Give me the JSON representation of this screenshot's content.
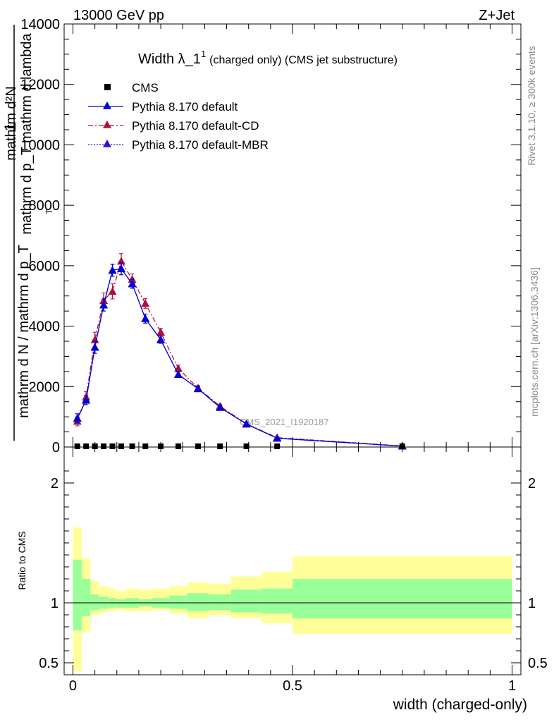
{
  "header": {
    "left": "13000 GeV pp",
    "right": "Z+Jet"
  },
  "side_labels": {
    "rivet": "Rivet 3.1.10, ≥ 300k events",
    "mcplots": "mcplots.cern.ch [arXiv:1306.3436]"
  },
  "watermark": "CMS_2021_I1920187",
  "chart_data": [
    {
      "type": "line",
      "title_main": "Width λ_1",
      "title_sup": "1",
      "title_rest": "(charged only) (CMS jet substructure)",
      "ylabel": {
        "numerator_one": "1",
        "denominator": "mathrm d N / mathrm d p_T",
        "fraction_numerator": "mathrm d²N",
        "fraction_denominator": "mathrm d p_T mathrm d lambda",
        "subscript": "T"
      },
      "xlim": [
        -0.02,
        1.02
      ],
      "ylim": [
        0,
        14000
      ],
      "y_ticks": [
        0,
        2000,
        4000,
        6000,
        8000,
        10000,
        12000,
        14000
      ],
      "legend_position": "top-left",
      "legend": [
        {
          "label": "CMS",
          "marker": "square",
          "color": "#000000"
        },
        {
          "label": "Pythia 8.170 default",
          "marker": "triangle",
          "line": "solid",
          "color": "#0000d0"
        },
        {
          "label": "Pythia 8.170 default-CD",
          "marker": "triangle",
          "line": "dashdot",
          "color": "#b0103a"
        },
        {
          "label": "Pythia 8.170 default-MBR",
          "marker": "triangle",
          "line": "dotted",
          "color": "#3a10c8"
        }
      ],
      "series": [
        {
          "name": "CMS",
          "x": [
            0.01,
            0.03,
            0.05,
            0.07,
            0.09,
            0.11,
            0.135,
            0.165,
            0.2,
            0.24,
            0.285,
            0.335,
            0.395,
            0.465,
            0.75
          ],
          "y": [
            25,
            25,
            25,
            25,
            25,
            25,
            25,
            25,
            25,
            25,
            25,
            25,
            25,
            25,
            25
          ]
        },
        {
          "name": "Pythia 8.170 default",
          "x": [
            0.01,
            0.03,
            0.05,
            0.07,
            0.09,
            0.11,
            0.135,
            0.165,
            0.2,
            0.24,
            0.285,
            0.335,
            0.395,
            0.465,
            0.75
          ],
          "y": [
            950,
            1550,
            3300,
            4700,
            5850,
            5900,
            5400,
            4250,
            3550,
            2400,
            1930,
            1310,
            760,
            290,
            30
          ],
          "err": [
            150,
            150,
            200,
            200,
            200,
            200,
            150,
            150,
            120,
            100,
            80,
            70,
            50,
            30,
            20
          ]
        },
        {
          "name": "Pythia 8.170 default-CD",
          "x": [
            0.01,
            0.03,
            0.05,
            0.07,
            0.09,
            0.11,
            0.135,
            0.165,
            0.2,
            0.24,
            0.285,
            0.335,
            0.395,
            0.465,
            0.75
          ],
          "y": [
            850,
            1650,
            3550,
            4850,
            5150,
            6150,
            5550,
            4750,
            3800,
            2600,
            1950,
            1350,
            770,
            310,
            35
          ],
          "err": [
            150,
            180,
            250,
            250,
            250,
            250,
            180,
            160,
            130,
            110,
            80,
            70,
            50,
            30,
            20
          ]
        },
        {
          "name": "Pythia 8.170 default-MBR",
          "x": [
            0.01,
            0.03,
            0.05,
            0.07,
            0.09,
            0.11,
            0.135,
            0.165,
            0.2,
            0.24,
            0.285,
            0.335,
            0.395,
            0.465,
            0.75
          ],
          "y": [
            950,
            1550,
            3300,
            4700,
            5850,
            5900,
            5400,
            4250,
            3550,
            2400,
            1930,
            1310,
            760,
            290,
            30
          ],
          "err": [
            150,
            150,
            200,
            200,
            200,
            200,
            150,
            150,
            120,
            100,
            80,
            70,
            50,
            30,
            20
          ]
        }
      ]
    },
    {
      "type": "area",
      "ylabel": "Ratio to CMS",
      "xlabel": "width (charged-only)",
      "xlim": [
        -0.02,
        1.02
      ],
      "ylim": [
        0.4,
        2.3
      ],
      "y_ticks": [
        0.5,
        1,
        2
      ],
      "x_ticks": [
        0,
        0.5,
        1
      ],
      "x_tick_labels": [
        "0",
        "0.5",
        "1"
      ],
      "y_tick_labels": [
        "0.5",
        "1",
        "2"
      ],
      "bins": [
        0,
        0.02,
        0.04,
        0.06,
        0.08,
        0.1,
        0.12,
        0.15,
        0.18,
        0.22,
        0.26,
        0.31,
        0.36,
        0.43,
        0.5,
        1.0
      ],
      "band_stat": {
        "lo": [
          0.77,
          0.89,
          0.94,
          0.95,
          0.96,
          0.96,
          0.96,
          0.97,
          0.96,
          0.95,
          0.93,
          0.94,
          0.92,
          0.91,
          0.87
        ],
        "hi": [
          1.36,
          1.2,
          1.07,
          1.05,
          1.04,
          1.03,
          1.04,
          1.03,
          1.04,
          1.06,
          1.08,
          1.07,
          1.11,
          1.12,
          1.2
        ]
      },
      "band_total": {
        "lo": [
          0.43,
          0.76,
          0.9,
          0.92,
          0.93,
          0.94,
          0.93,
          0.93,
          0.94,
          0.91,
          0.87,
          0.9,
          0.87,
          0.83,
          0.74
        ],
        "hi": [
          1.63,
          1.37,
          1.18,
          1.14,
          1.12,
          1.1,
          1.12,
          1.11,
          1.12,
          1.14,
          1.17,
          1.16,
          1.22,
          1.26,
          1.39
        ]
      },
      "colors": {
        "band_total": "#ffff99",
        "band_stat": "#99ff99"
      }
    }
  ]
}
